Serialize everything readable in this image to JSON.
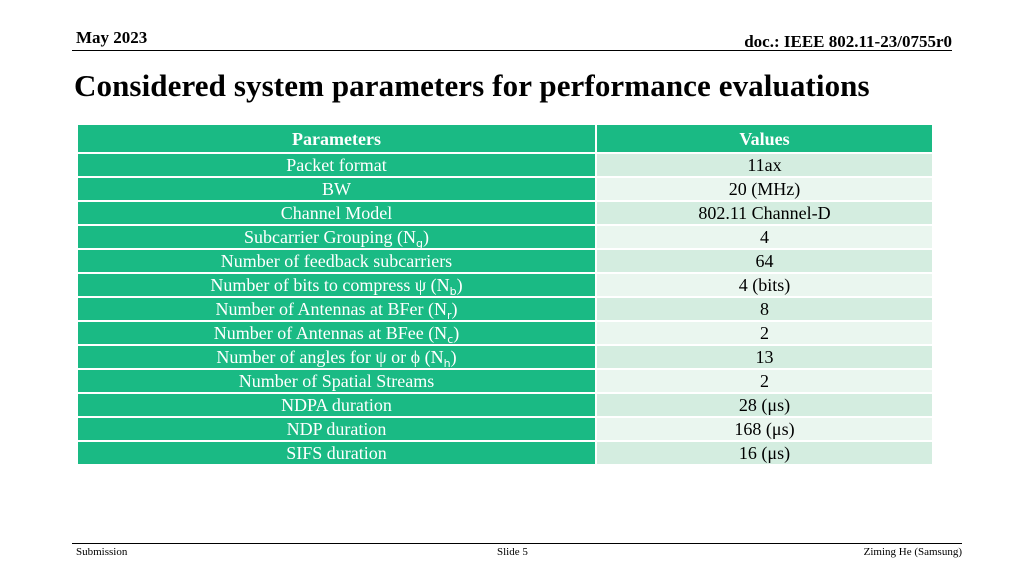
{
  "header": {
    "date": "May 2023",
    "doc": "doc.: IEEE 802.11-23/0755r0"
  },
  "title": "Considered system parameters for performance evaluations",
  "table": {
    "headers": [
      "Parameters",
      "Values"
    ],
    "rows": [
      {
        "param": "Packet format",
        "value": "11ax"
      },
      {
        "param": "BW",
        "value": "20 (MHz)"
      },
      {
        "param": "Channel Model",
        "value": "802.11 Channel-D"
      },
      {
        "param": "Subcarrier Grouping (N",
        "param_sub": "g",
        "param_suffix": ")",
        "value": "4"
      },
      {
        "param": "Number of feedback subcarriers",
        "value": "64"
      },
      {
        "param": "Number of bits to compress ψ (N",
        "param_sub": "b",
        "param_suffix": ")",
        "value": "4 (bits)"
      },
      {
        "param": "Number of Antennas at BFer (N",
        "param_sub": "r",
        "param_suffix": ")",
        "value": "8"
      },
      {
        "param": "Number of Antennas at BFee (N",
        "param_sub": "c",
        "param_suffix": ")",
        "value": "2"
      },
      {
        "param": "Number of angles for ψ or ϕ  (N",
        "param_sub": "h",
        "param_suffix": ")",
        "value": "13"
      },
      {
        "param": "Number of Spatial Streams",
        "value": "2"
      },
      {
        "param": "NDPA duration",
        "value": "28 (μs)"
      },
      {
        "param": "NDP duration",
        "value": "168 (μs)"
      },
      {
        "param": "SIFS duration",
        "value": "16 (μs)"
      }
    ]
  },
  "footer": {
    "left": "Submission",
    "center": "Slide 5",
    "right": "Ziming He (Samsung)"
  },
  "colors": {
    "header_row": "#1aba84",
    "param_cell": "#1aba84",
    "value_cell_a": "#d4ede0",
    "value_cell_b": "#eaf6ef"
  }
}
